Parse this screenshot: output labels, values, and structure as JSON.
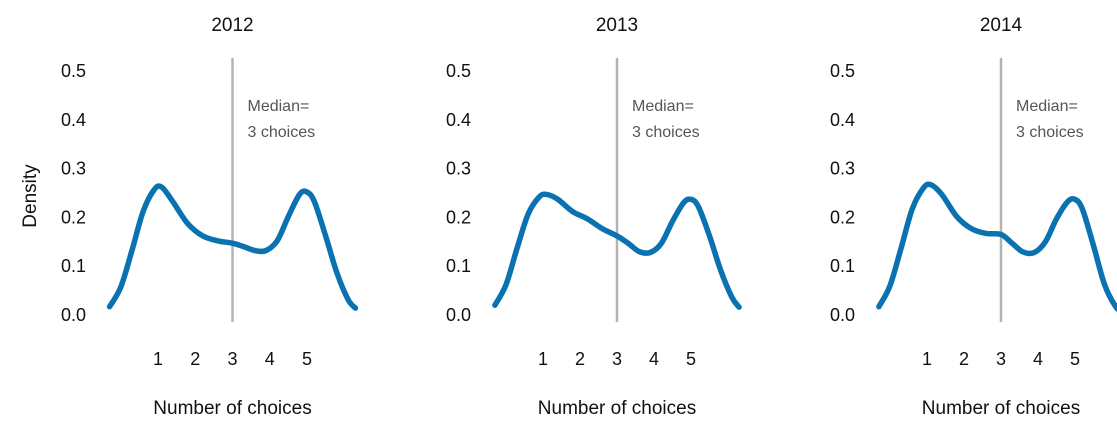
{
  "chart_data": [
    {
      "type": "area",
      "title": "2012",
      "xlabel": "Number of choices",
      "ylabel": "Density",
      "xlim": [
        -0.3,
        6.3
      ],
      "ylim": [
        0.0,
        0.5
      ],
      "x_ticks": [
        1,
        2,
        3,
        4,
        5
      ],
      "y_ticks": [
        0.0,
        0.1,
        0.2,
        0.3,
        0.4,
        0.5
      ],
      "y_tick_labels": [
        "0.0",
        "0.1",
        "0.2",
        "0.3",
        "0.4",
        "0.5"
      ],
      "grid": false,
      "median": 3,
      "median_label_lines": [
        "Median=",
        "3 choices"
      ],
      "series": [
        {
          "x": [
            -0.3,
            0.0,
            0.3,
            0.6,
            0.9,
            1.1,
            1.4,
            1.8,
            2.2,
            2.6,
            3.0,
            3.3,
            3.6,
            3.9,
            4.2,
            4.5,
            4.8,
            5.0,
            5.2,
            5.5,
            5.8,
            6.1,
            6.3
          ],
          "y": [
            0.015,
            0.055,
            0.13,
            0.21,
            0.255,
            0.26,
            0.23,
            0.185,
            0.16,
            0.15,
            0.145,
            0.138,
            0.13,
            0.13,
            0.15,
            0.2,
            0.245,
            0.25,
            0.23,
            0.16,
            0.085,
            0.03,
            0.012
          ]
        }
      ]
    },
    {
      "type": "area",
      "title": "2013",
      "xlabel": "Number of choices",
      "ylabel": "",
      "xlim": [
        -0.3,
        6.3
      ],
      "ylim": [
        0.0,
        0.5
      ],
      "x_ticks": [
        1,
        2,
        3,
        4,
        5
      ],
      "y_ticks": [
        0.0,
        0.1,
        0.2,
        0.3,
        0.4,
        0.5
      ],
      "y_tick_labels": [
        "0.0",
        "0.1",
        "0.2",
        "0.3",
        "0.4",
        "0.5"
      ],
      "grid": false,
      "median": 3,
      "median_label_lines": [
        "Median=",
        "3 choices"
      ],
      "series": [
        {
          "x": [
            -0.3,
            0.0,
            0.3,
            0.6,
            0.9,
            1.1,
            1.4,
            1.8,
            2.2,
            2.6,
            3.0,
            3.3,
            3.6,
            3.9,
            4.2,
            4.5,
            4.8,
            5.0,
            5.2,
            5.5,
            5.8,
            6.1,
            6.3
          ],
          "y": [
            0.018,
            0.06,
            0.135,
            0.205,
            0.24,
            0.245,
            0.235,
            0.21,
            0.195,
            0.175,
            0.16,
            0.145,
            0.128,
            0.126,
            0.145,
            0.19,
            0.228,
            0.235,
            0.22,
            0.16,
            0.09,
            0.035,
            0.014
          ]
        }
      ]
    },
    {
      "type": "area",
      "title": "2014",
      "xlabel": "Number of choices",
      "ylabel": "",
      "xlim": [
        -0.3,
        6.3
      ],
      "ylim": [
        0.0,
        0.5
      ],
      "x_ticks": [
        1,
        2,
        3,
        4,
        5
      ],
      "y_ticks": [
        0.0,
        0.1,
        0.2,
        0.3,
        0.4,
        0.5
      ],
      "y_tick_labels": [
        "0.0",
        "0.1",
        "0.2",
        "0.3",
        "0.4",
        "0.5"
      ],
      "grid": false,
      "median": 3,
      "median_label_lines": [
        "Median=",
        "3 choices"
      ],
      "series": [
        {
          "x": [
            -0.3,
            0.0,
            0.3,
            0.6,
            0.9,
            1.1,
            1.4,
            1.8,
            2.2,
            2.6,
            3.0,
            3.3,
            3.6,
            3.9,
            4.2,
            4.5,
            4.8,
            5.0,
            5.2,
            5.5,
            5.8,
            6.1,
            6.3
          ],
          "y": [
            0.015,
            0.058,
            0.135,
            0.215,
            0.258,
            0.265,
            0.245,
            0.2,
            0.175,
            0.165,
            0.163,
            0.145,
            0.127,
            0.126,
            0.148,
            0.195,
            0.23,
            0.235,
            0.215,
            0.14,
            0.06,
            0.015,
            0.003
          ]
        }
      ]
    }
  ],
  "colors": {
    "line": "#0a72b0",
    "median_line": "#b3b3b3",
    "median_text": "#555555",
    "axis_text": "#111111"
  }
}
